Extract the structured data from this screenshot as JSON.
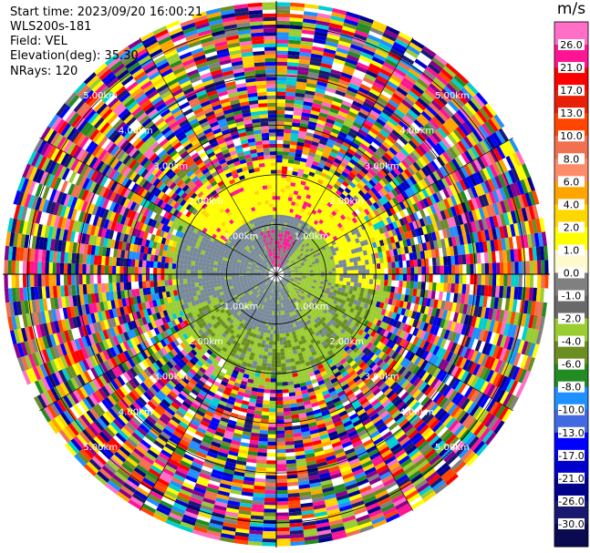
{
  "header": {
    "start_time": "Start time: 2023/09/20 16:00:21",
    "instrument": "WLS200s-181",
    "field": "Field: VEL",
    "elevation": "Elevation(deg): 35.30",
    "nrays": "NRays: 120"
  },
  "chart_data": {
    "type": "heatmap",
    "projection": "polar-ppi",
    "range_rings_km": [
      1,
      2,
      3,
      4,
      5
    ],
    "ring_labels": [
      "1.00km",
      "2.00km",
      "3.00km",
      "4.00km",
      "5.00km"
    ],
    "max_range_km": 5.5,
    "nrays": 120,
    "colorbar": {
      "unit": "m/s",
      "min": -30.0,
      "max": 30.0,
      "ticks": [
        "26.0",
        "21.0",
        "17.0",
        "13.0",
        "10.0",
        "8.0",
        "6.0",
        "4.0",
        "2.0",
        "1.0",
        "0.0",
        "-1.0",
        "-2.0",
        "-4.0",
        "-6.0",
        "-8.0",
        "-10.0",
        "-13.0",
        "-17.0",
        "-21.0",
        "-26.0",
        "-30.0"
      ],
      "colors": [
        "#ff6ec7",
        "#ff1493",
        "#ff0000",
        "#e8200a",
        "#ff4500",
        "#f07050",
        "#ff8c69",
        "#ffa500",
        "#ffd700",
        "#ffff00",
        "#fffacd",
        "#808080",
        "#696969",
        "#9acd32",
        "#6b8e23",
        "#228b22",
        "#1e90ff",
        "#4169e1",
        "#0000ff",
        "#0000cd",
        "#00008b",
        "#191970",
        "#0a0a50"
      ]
    },
    "field_features": {
      "near_field_gray_km": [
        0,
        1.2
      ],
      "band_yellow_km": [
        0.8,
        2.0
      ],
      "band_green_km": [
        0.5,
        2.0
      ],
      "outer_noise_km": [
        2.0,
        5.5
      ]
    }
  }
}
